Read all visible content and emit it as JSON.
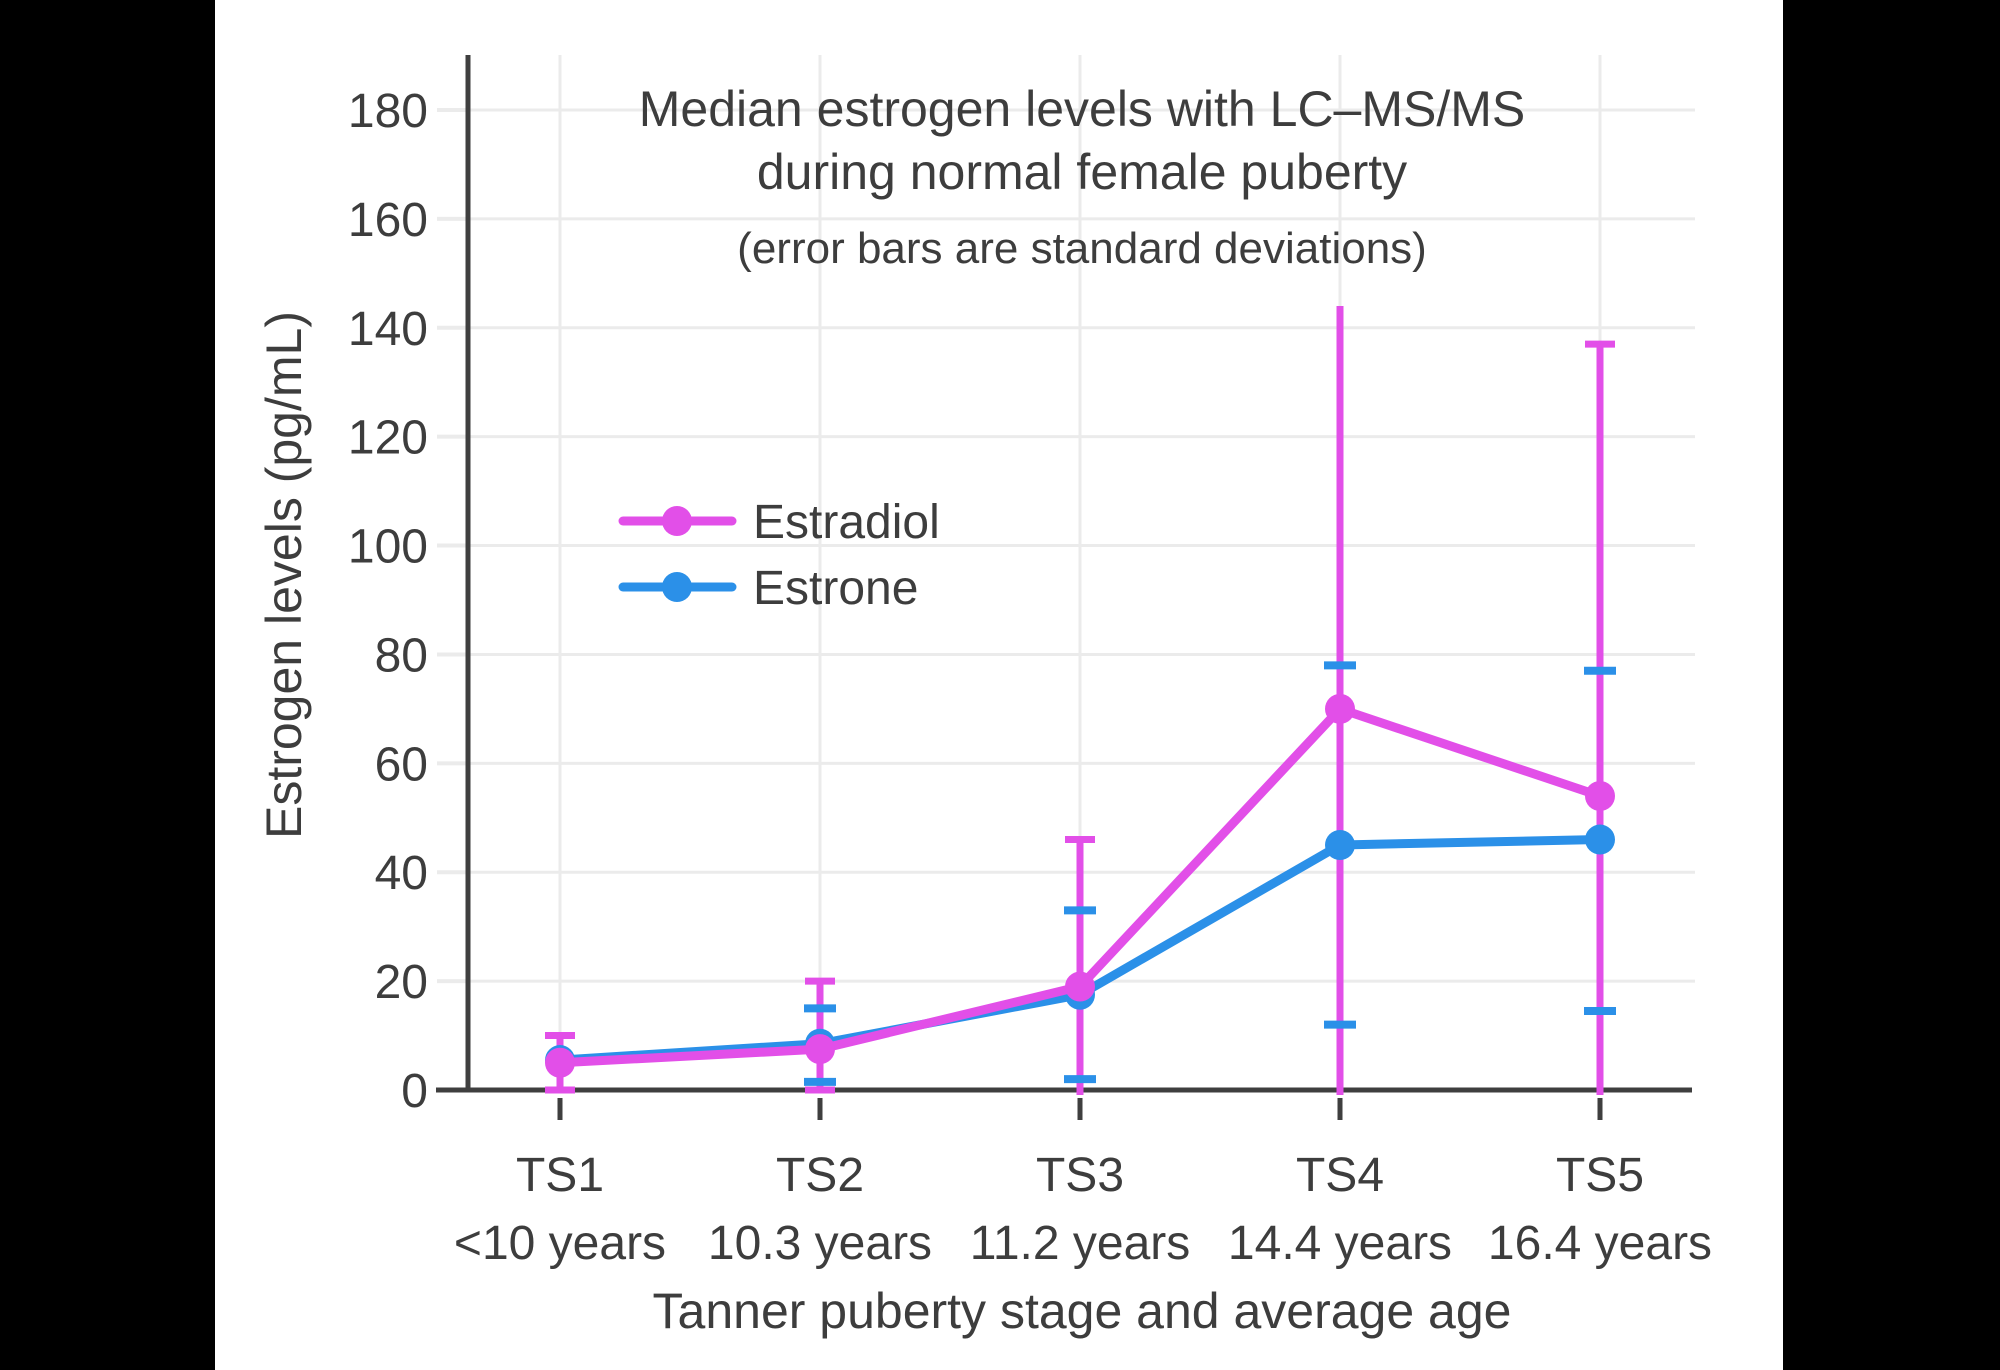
{
  "chart_data": {
    "type": "line",
    "title_line1": "Median estrogen levels with LC–MS/MS",
    "title_line2": "during normal female puberty",
    "subtitle": "(error bars are standard deviations)",
    "ylabel": "Estrogen levels (pg/mL)",
    "xlabel": "Tanner puberty stage and average age",
    "ylim": [
      0,
      190
    ],
    "yticks": [
      0,
      20,
      40,
      60,
      80,
      100,
      120,
      140,
      160,
      180
    ],
    "grid": true,
    "legend_position": "inside-upper-left",
    "categories": [
      "TS1",
      "TS2",
      "TS3",
      "TS4",
      "TS5"
    ],
    "category_ages": [
      "<10 years",
      "10.3 years",
      "11.2 years",
      "14.4 years",
      "16.4 years"
    ],
    "series": [
      {
        "name": "Estradiol",
        "color": "#E24FE8",
        "values": [
          5,
          7.5,
          19,
          70,
          54
        ],
        "err_upper": [
          10,
          20,
          46,
          144,
          137
        ],
        "err_lower": [
          0,
          0,
          0,
          0,
          0
        ],
        "upper_cap": [
          true,
          true,
          true,
          false,
          true
        ],
        "lower_cap": [
          true,
          true,
          false,
          false,
          false
        ]
      },
      {
        "name": "Estrone",
        "color": "#2B90E8",
        "values": [
          5.5,
          8.5,
          17.5,
          45,
          46
        ],
        "err_upper": [
          null,
          15,
          33,
          78,
          77
        ],
        "err_lower": [
          null,
          1.5,
          2,
          12,
          14.5
        ],
        "upper_cap": [
          false,
          true,
          true,
          true,
          true
        ],
        "lower_cap": [
          false,
          true,
          true,
          true,
          true
        ]
      }
    ],
    "colors": {
      "axis": "#3f3f3f",
      "grid": "#ebebeb",
      "text": "#3d3d3d",
      "panel_bg": "#ffffff",
      "outer_bg": "#000000"
    }
  },
  "legend": {
    "items": [
      {
        "label": "Estradiol"
      },
      {
        "label": "Estrone"
      }
    ]
  }
}
